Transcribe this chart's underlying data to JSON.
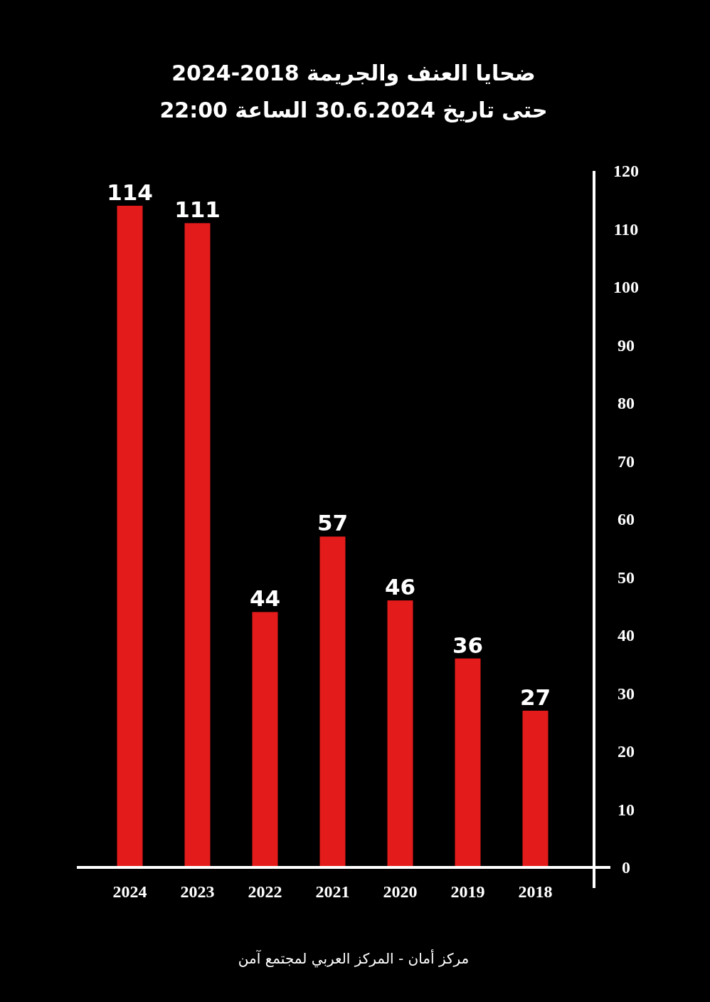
{
  "chart_data": {
    "type": "bar",
    "title": "ضحايا العنف والجريمة 2018-2024",
    "subtitle": "حتى تاريخ 30.6.2024  الساعة 22:00",
    "categories": [
      "2024",
      "2023",
      "2022",
      "2021",
      "2020",
      "2019",
      "2018"
    ],
    "values": [
      114,
      111,
      44,
      57,
      46,
      36,
      27
    ],
    "color": "#e31b1b",
    "ylim": [
      0,
      120
    ],
    "yticks": [
      0,
      10,
      20,
      30,
      40,
      50,
      60,
      70,
      80,
      90,
      100,
      110,
      120
    ],
    "data_labels": true,
    "annotations": [
      "مركز أمان  - المركز العربي لمجتمع آمن"
    ]
  }
}
